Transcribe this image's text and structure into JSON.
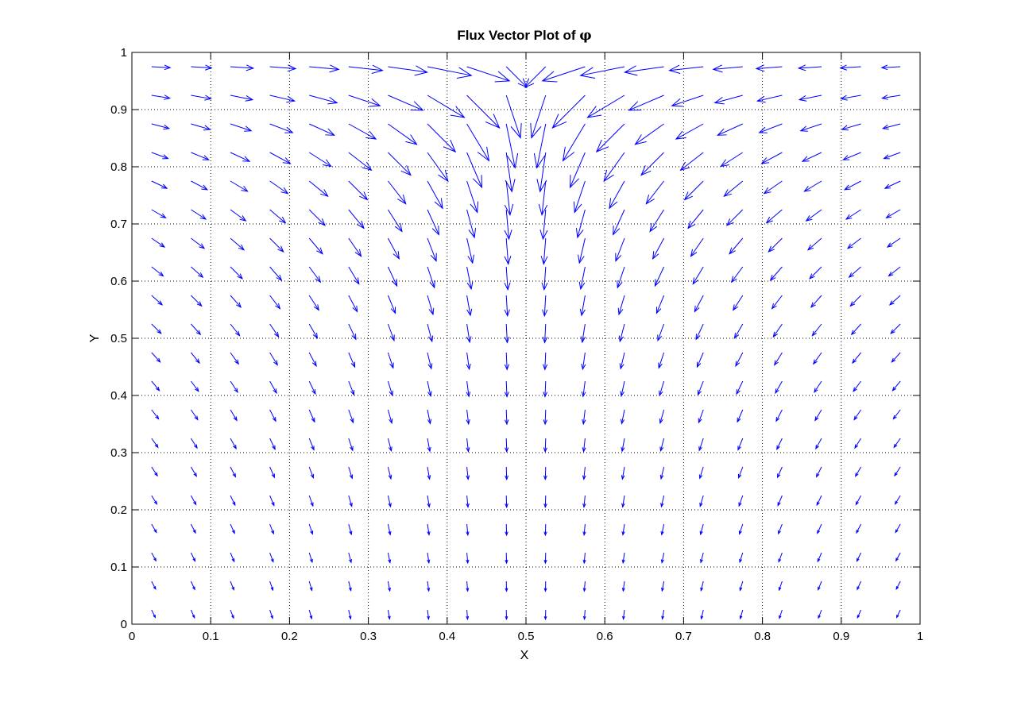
{
  "chart_data": {
    "type": "quiver",
    "title": "Flux Vector Plot of",
    "title_symbol": "φ",
    "xlabel": "X",
    "ylabel": "Y",
    "xlim": [
      0,
      1
    ],
    "ylim": [
      0,
      1
    ],
    "xticks": [
      "0",
      "0.1",
      "0.2",
      "0.3",
      "0.4",
      "0.5",
      "0.6",
      "0.7",
      "0.8",
      "0.9",
      "1"
    ],
    "yticks": [
      "0",
      "0.1",
      "0.2",
      "0.3",
      "0.4",
      "0.5",
      "0.6",
      "0.7",
      "0.8",
      "0.9",
      "1"
    ],
    "grid": true,
    "grid_style": "dotted",
    "arrow_color": "#0000ff",
    "field": {
      "description_source": "grid of arrows sampled at x,y = 0.025 + 0.05*k (k = 0..19); arrows point from source at (0.5, 1) on top edge",
      "x_samples": [
        0.025,
        0.075,
        0.125,
        0.175,
        0.225,
        0.275,
        0.325,
        0.375,
        0.425,
        0.475,
        0.525,
        0.575,
        0.625,
        0.675,
        0.725,
        0.775,
        0.825,
        0.875,
        0.925,
        0.975
      ],
      "y_samples": [
        0.025,
        0.075,
        0.125,
        0.175,
        0.225,
        0.275,
        0.325,
        0.375,
        0.425,
        0.475,
        0.525,
        0.575,
        0.625,
        0.675,
        0.725,
        0.775,
        0.825,
        0.875,
        0.925,
        0.975
      ]
    }
  }
}
